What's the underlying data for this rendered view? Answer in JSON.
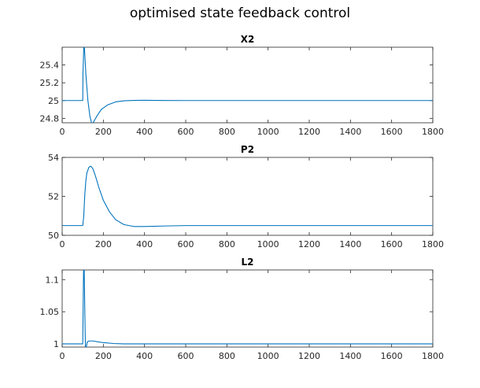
{
  "figure": {
    "title": "optimised state feedback control"
  },
  "chart_data": [
    {
      "type": "line",
      "title": "X2",
      "xlim": [
        0,
        1800
      ],
      "ylim": [
        24.75,
        25.6
      ],
      "xticks": [
        0,
        200,
        400,
        600,
        800,
        1000,
        1200,
        1400,
        1600,
        1800
      ],
      "yticks": [
        24.8,
        25,
        25.2,
        25.4
      ],
      "ytick_labels": [
        "24.8",
        "25",
        "25.2",
        "25.4"
      ],
      "line_color": "#0072bd",
      "series": [
        {
          "x": [
            0,
            100,
            101,
            105,
            108,
            115,
            125,
            135,
            145,
            155,
            170,
            190,
            220,
            260,
            300,
            350,
            400,
            500,
            600,
            800,
            1800
          ],
          "y": [
            25,
            25,
            25.3,
            25.6,
            25.6,
            25.3,
            25.0,
            24.82,
            24.73,
            24.77,
            24.83,
            24.9,
            24.95,
            24.985,
            24.997,
            25.002,
            25.003,
            25.001,
            25,
            25,
            25
          ]
        }
      ]
    },
    {
      "type": "line",
      "title": "P2",
      "xlim": [
        0,
        1800
      ],
      "ylim": [
        50,
        54
      ],
      "xticks": [
        0,
        200,
        400,
        600,
        800,
        1000,
        1200,
        1400,
        1600,
        1800
      ],
      "yticks": [
        50,
        52,
        54
      ],
      "ytick_labels": [
        "50",
        "52",
        "54"
      ],
      "line_color": "#0072bd",
      "series": [
        {
          "x": [
            0,
            100,
            105,
            110,
            115,
            120,
            130,
            140,
            150,
            160,
            180,
            200,
            230,
            260,
            300,
            350,
            400,
            500,
            600,
            800,
            1800
          ],
          "y": [
            50.5,
            50.5,
            51.0,
            52.1,
            52.8,
            53.2,
            53.5,
            53.55,
            53.4,
            53.1,
            52.4,
            51.8,
            51.2,
            50.8,
            50.55,
            50.45,
            50.45,
            50.48,
            50.5,
            50.5,
            50.5
          ]
        }
      ]
    },
    {
      "type": "line",
      "title": "L2",
      "xlim": [
        0,
        1800
      ],
      "ylim": [
        0.995,
        1.115
      ],
      "xticks": [
        0,
        200,
        400,
        600,
        800,
        1000,
        1200,
        1400,
        1600,
        1800
      ],
      "yticks": [
        1,
        1.05,
        1.1
      ],
      "ytick_labels": [
        "1",
        "1.05",
        "1.1"
      ],
      "line_color": "#0072bd",
      "series": [
        {
          "x": [
            0,
            100,
            102,
            104,
            107,
            110,
            113,
            117,
            122,
            130,
            150,
            175,
            200,
            250,
            300,
            400,
            1800
          ],
          "y": [
            1,
            1,
            1.06,
            1.115,
            1.115,
            1.05,
            0.995,
            0.995,
            1.003,
            1.0045,
            1.0045,
            1.003,
            1.002,
            1.0005,
            1.0,
            1.0,
            1.0
          ]
        }
      ]
    }
  ]
}
